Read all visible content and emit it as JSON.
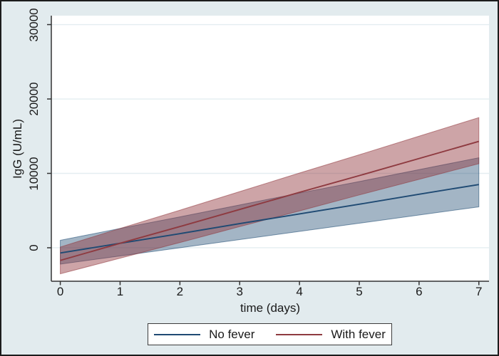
{
  "figure": {
    "background": "#e2ebee",
    "plot_background": "#ffffff",
    "outer_border_color": "#1c1c1c",
    "gridline_color": "#e4edf1",
    "axis_color": "#333333",
    "text_color": "#1a1a1a"
  },
  "chart_data": {
    "type": "line",
    "title": "",
    "xlabel": "time (days)",
    "ylabel": "IgG (U/mL)",
    "xlim": [
      -0.15,
      7.17
    ],
    "ylim": [
      -4500,
      31200
    ],
    "xticks": [
      0,
      1,
      2,
      3,
      4,
      5,
      6,
      7
    ],
    "yticks": [
      0,
      10000,
      20000,
      30000
    ],
    "x_tick_labels": [
      "0",
      "1",
      "2",
      "3",
      "4",
      "5",
      "6",
      "7"
    ],
    "y_tick_labels": [
      "0",
      "10000",
      "20000",
      "30000"
    ],
    "grid": "horizontal-only",
    "legend_position": "bottom-center",
    "x": [
      0,
      1,
      2,
      3,
      4,
      5,
      6,
      7
    ],
    "series": [
      {
        "name": "No fever",
        "color": "#1f4a73",
        "band_fill": "#1a476f",
        "band_opacity": 0.4,
        "mean": [
          -700,
          600,
          1900,
          3250,
          4550,
          5850,
          7200,
          8500
        ],
        "ci_upper": [
          1000,
          2600,
          4150,
          5750,
          7350,
          8900,
          10500,
          12100
        ],
        "ci_lower": [
          -2200,
          -1100,
          0,
          1100,
          2200,
          3300,
          4400,
          5500
        ]
      },
      {
        "name": "With fever",
        "color": "#8e3a40",
        "band_fill": "#90353b",
        "band_opacity": 0.45,
        "mean": [
          -1700,
          600,
          2850,
          5150,
          7450,
          9700,
          12000,
          14300
        ],
        "ci_upper": [
          100,
          2600,
          5050,
          7550,
          10050,
          12500,
          15000,
          17500
        ],
        "ci_lower": [
          -3500,
          -1400,
          700,
          2850,
          4950,
          7100,
          9200,
          11300
        ]
      }
    ]
  }
}
